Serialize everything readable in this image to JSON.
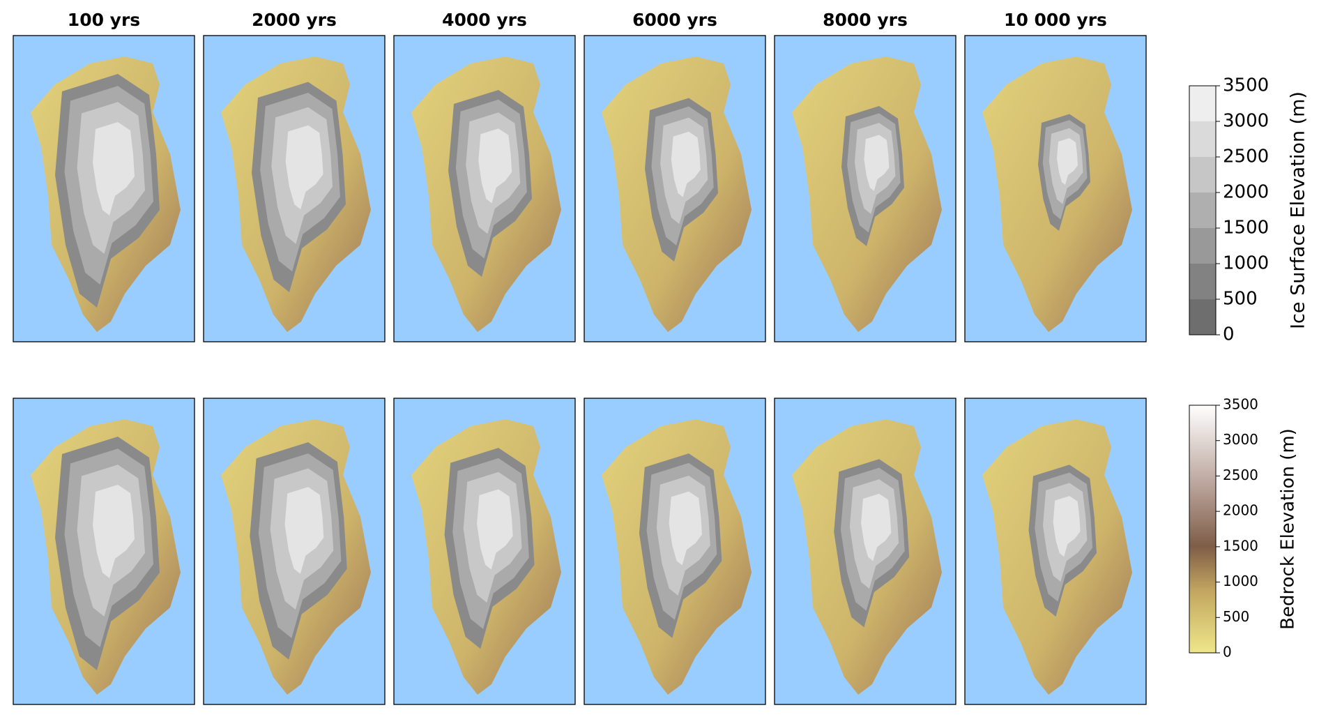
{
  "panels": {
    "titles": [
      "100 yrs",
      "2000 yrs",
      "4000 yrs",
      "6000 yrs",
      "8000 yrs",
      "10 000 yrs"
    ]
  },
  "colorbars": [
    {
      "label": "Ice Surface Elevation (m)",
      "lim": [
        0,
        3500
      ],
      "ticks": [
        0,
        500,
        1000,
        1500,
        2000,
        2500,
        3000,
        3500
      ]
    },
    {
      "label": "Bedrock Elevation (m)",
      "lim": [
        0,
        3500
      ],
      "ticks": [
        0,
        500,
        1000,
        1500,
        2000,
        2500,
        3000,
        3500
      ]
    }
  ]
}
